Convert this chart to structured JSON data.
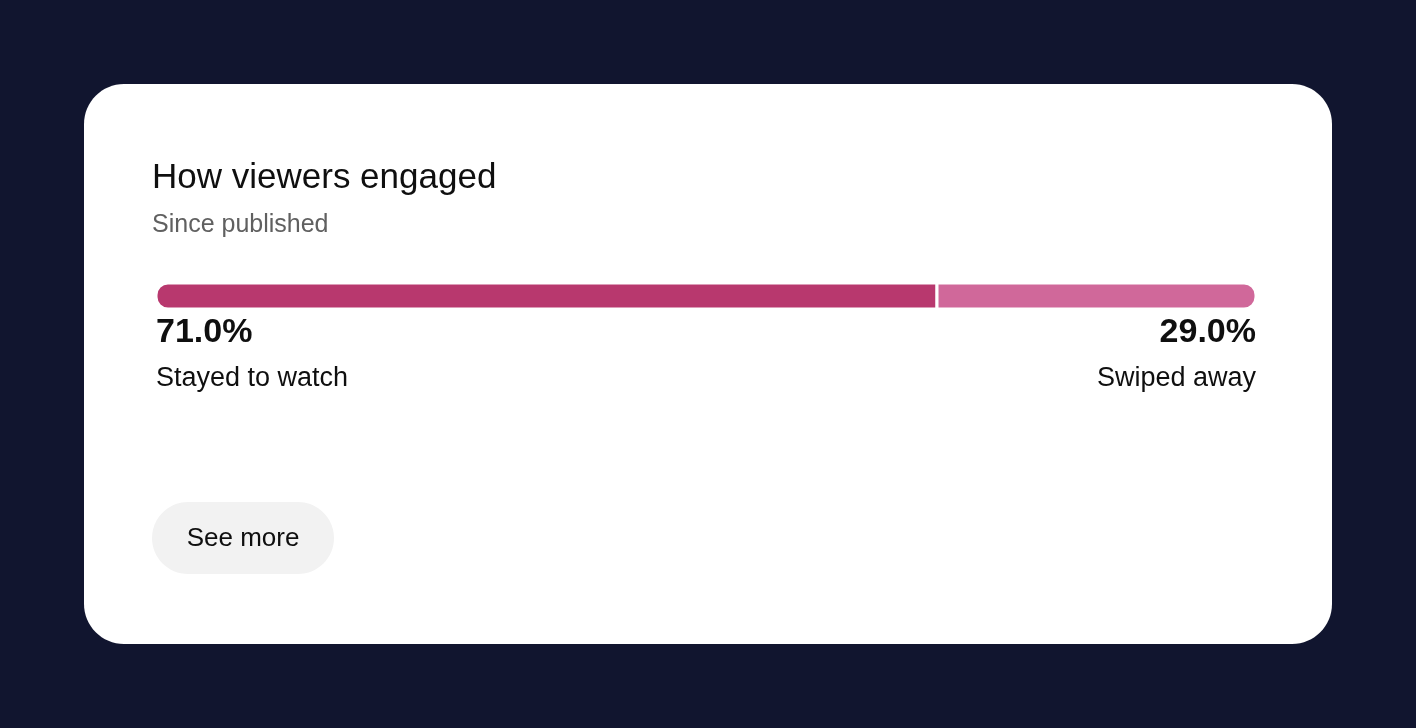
{
  "chart_data": {
    "type": "bar",
    "title": "How viewers engaged",
    "subtitle": "Since published",
    "orientation": "horizontal",
    "stacked": true,
    "categories": [
      null
    ],
    "series": [
      {
        "name": "Stayed to watch",
        "color": "#b8386e",
        "values": [
          71.0
        ],
        "value_labels": [
          "71.0%"
        ]
      },
      {
        "name": "Swiped away",
        "color": "#d0689a",
        "values": [
          29.0
        ],
        "value_labels": [
          "29.0%"
        ]
      }
    ],
    "annotations": [
      "See more"
    ]
  }
}
